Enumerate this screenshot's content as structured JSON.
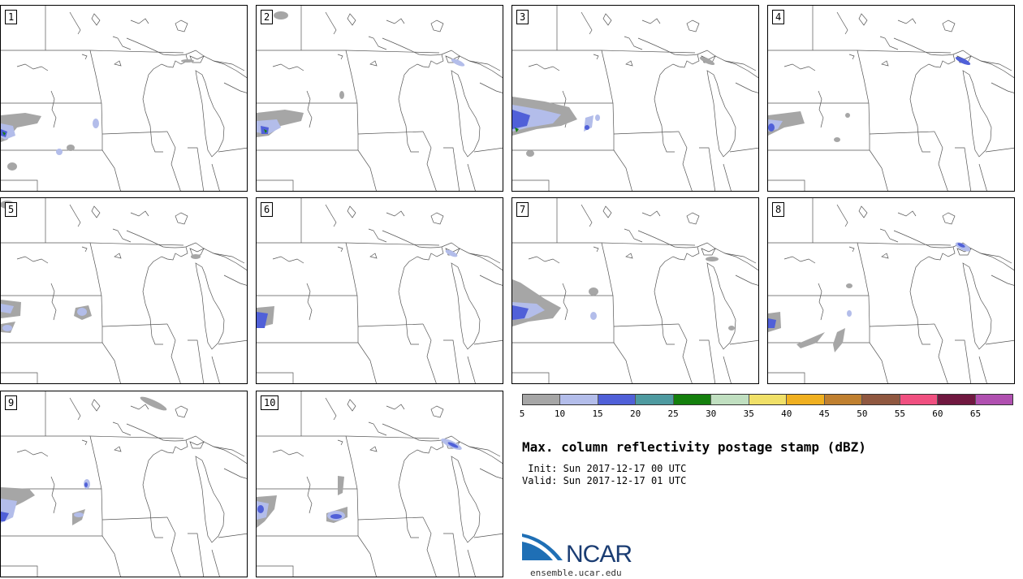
{
  "panels": [
    {
      "label": "1"
    },
    {
      "label": "2"
    },
    {
      "label": "3"
    },
    {
      "label": "4"
    },
    {
      "label": "5"
    },
    {
      "label": "6"
    },
    {
      "label": "7"
    },
    {
      "label": "8"
    },
    {
      "label": "9"
    },
    {
      "label": "10"
    }
  ],
  "colorbar": {
    "colors": [
      "#a6a6a6",
      "#b3bdea",
      "#5060d8",
      "#4e9aa0",
      "#15800e",
      "#c0dfc0",
      "#f0e068",
      "#f0b020",
      "#c08030",
      "#905840",
      "#f05080",
      "#701840",
      "#b050b0"
    ],
    "ticks": [
      "5",
      "10",
      "15",
      "20",
      "25",
      "30",
      "35",
      "40",
      "45",
      "50",
      "55",
      "60",
      "65"
    ]
  },
  "title": "Max. column reflectivity postage stamp (dBZ)",
  "init": " Init: Sun 2017-12-17 00 UTC",
  "valid": "Valid: Sun 2017-12-17 01 UTC",
  "logo": {
    "text": "NCAR",
    "site": "ensemble.ucar.edu"
  }
}
